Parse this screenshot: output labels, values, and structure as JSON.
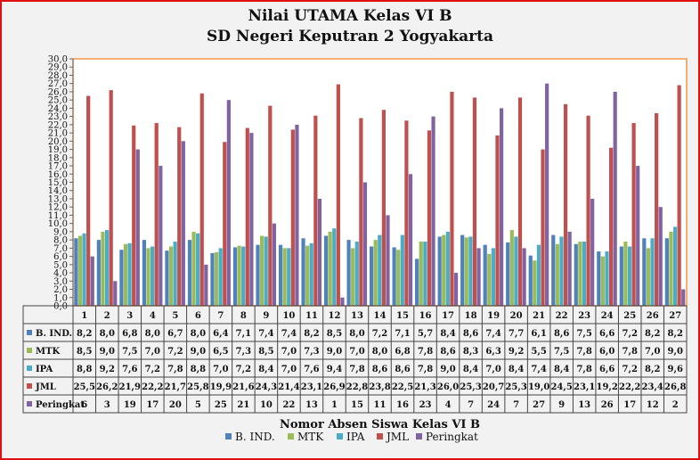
{
  "chart_data": {
    "type": "bar",
    "title": "Nilai UTAMA Kelas VI B",
    "subtitle": "SD Negeri Keputran 2 Yogyakarta",
    "xlabel": "Nomor Absen Siswa Kelas VI B",
    "ylabel": "",
    "ylim": [
      0,
      30
    ],
    "ytick_step": 1,
    "grid": false,
    "legend": "bottom",
    "categories": [
      "1",
      "2",
      "3",
      "4",
      "5",
      "6",
      "7",
      "8",
      "9",
      "10",
      "11",
      "12",
      "13",
      "14",
      "15",
      "16",
      "17",
      "18",
      "19",
      "20",
      "21",
      "22",
      "23",
      "24",
      "25",
      "26",
      "27"
    ],
    "series": [
      {
        "name": "B. IND.",
        "color": "#4f81bd",
        "values": [
          8.2,
          8.0,
          6.8,
          8.0,
          6.7,
          8.0,
          6.4,
          7.1,
          7.4,
          7.4,
          8.2,
          8.5,
          8.0,
          7.2,
          7.1,
          5.7,
          8.4,
          8.6,
          7.4,
          7.7,
          6.1,
          8.6,
          7.5,
          6.6,
          7.2,
          8.2,
          8.2
        ]
      },
      {
        "name": "MTK",
        "color": "#9bbb59",
        "values": [
          8.5,
          9.0,
          7.5,
          7.0,
          7.2,
          9.0,
          6.5,
          7.3,
          8.5,
          7.0,
          7.3,
          9.0,
          7.0,
          8.0,
          6.8,
          7.8,
          8.6,
          8.3,
          6.3,
          9.2,
          5.5,
          7.5,
          7.8,
          6.0,
          7.8,
          7.0,
          9.0
        ]
      },
      {
        "name": "IPA",
        "color": "#4bacc6",
        "values": [
          8.8,
          9.2,
          7.6,
          7.2,
          7.8,
          8.8,
          7.0,
          7.2,
          8.4,
          7.0,
          7.6,
          9.4,
          7.8,
          8.6,
          8.6,
          7.8,
          9.0,
          8.4,
          7.0,
          8.4,
          7.4,
          8.4,
          7.8,
          6.6,
          7.2,
          8.2,
          9.6
        ]
      },
      {
        "name": "JML",
        "color": "#c0504d",
        "values": [
          25.5,
          26.2,
          21.9,
          22.2,
          21.7,
          25.8,
          19.9,
          21.6,
          24.3,
          21.4,
          23.1,
          26.9,
          22.8,
          23.8,
          22.5,
          21.3,
          26.0,
          25.3,
          20.7,
          25.3,
          19.0,
          24.5,
          23.1,
          19.2,
          22.2,
          23.4,
          26.8
        ]
      },
      {
        "name": "Peringkat",
        "color": "#8064a2",
        "values": [
          6,
          3,
          19,
          17,
          20,
          5,
          25,
          21,
          10,
          22,
          13,
          1,
          15,
          11,
          16,
          23,
          4,
          7,
          24,
          7,
          27,
          9,
          13,
          26,
          17,
          12,
          2
        ]
      }
    ]
  }
}
